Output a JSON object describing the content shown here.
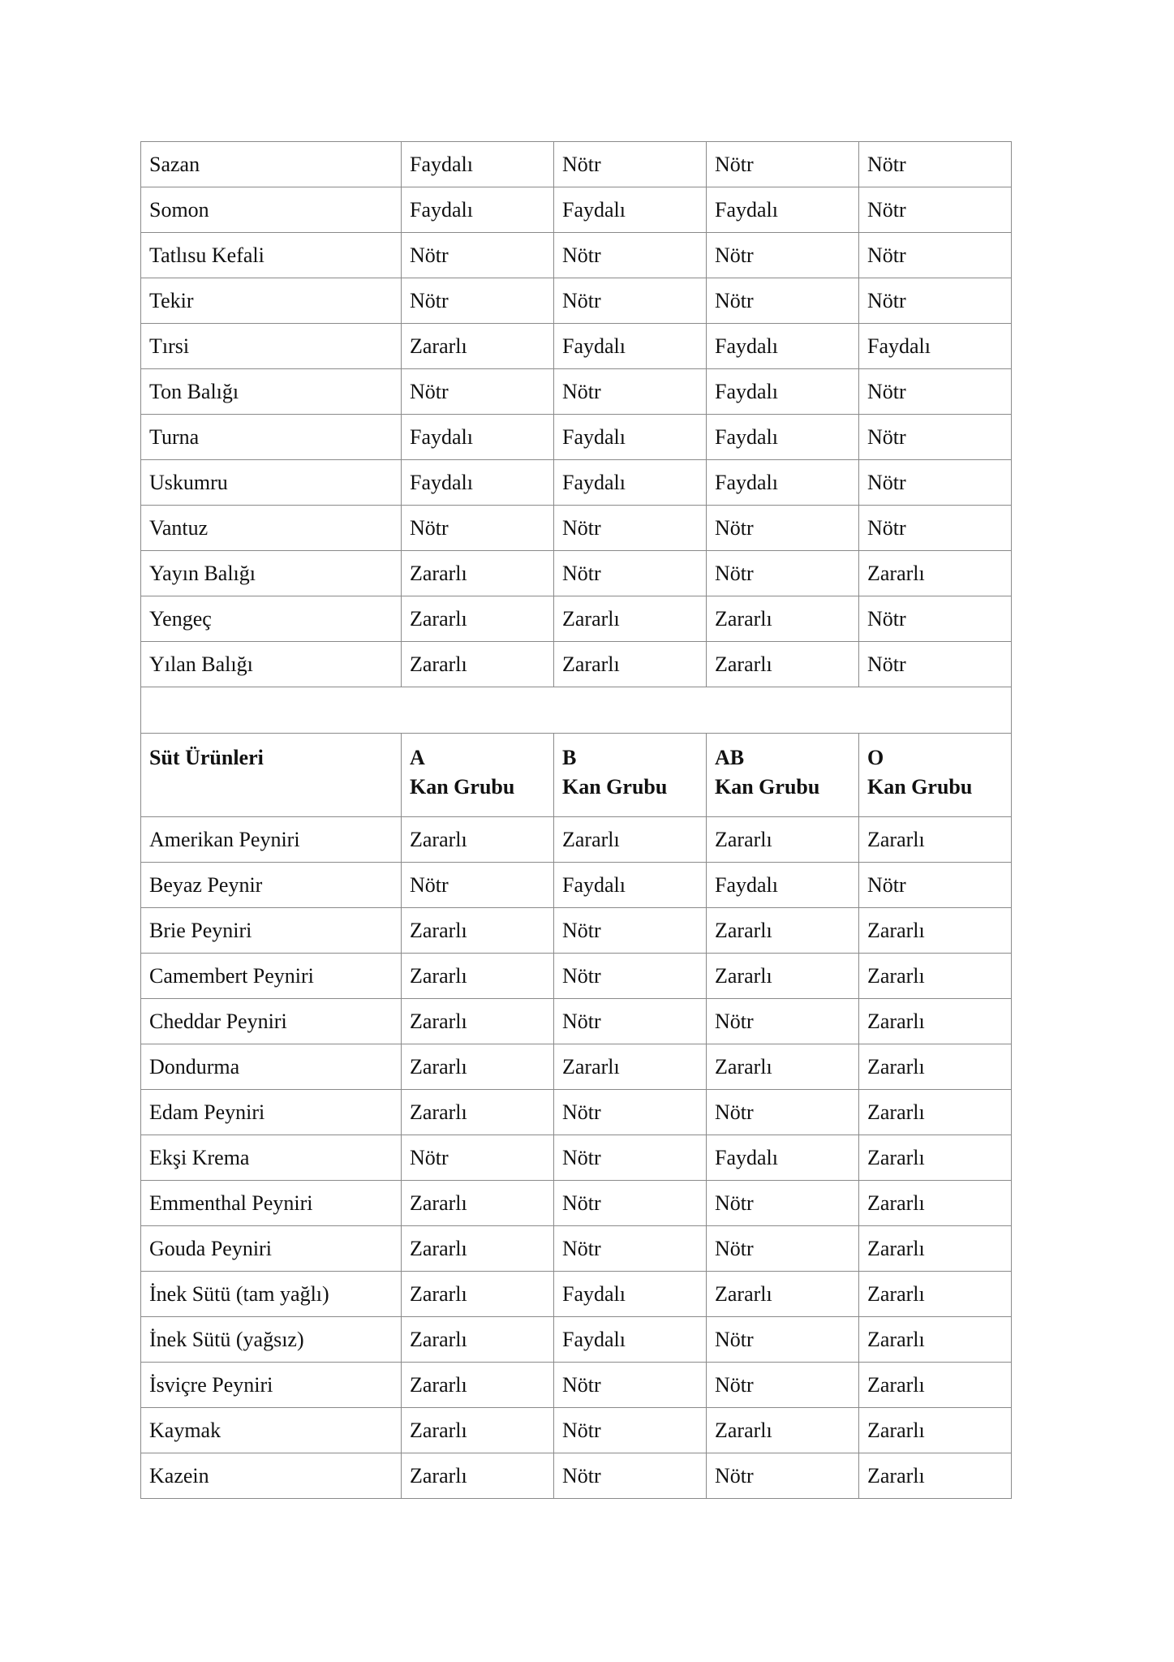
{
  "fish_rows": [
    [
      "Sazan",
      "Faydalı",
      "Nötr",
      "Nötr",
      "Nötr"
    ],
    [
      "Somon",
      "Faydalı",
      "Faydalı",
      "Faydalı",
      "Nötr"
    ],
    [
      "Tatlısu Kefali",
      "Nötr",
      "Nötr",
      "Nötr",
      "Nötr"
    ],
    [
      "Tekir",
      "Nötr",
      "Nötr",
      "Nötr",
      "Nötr"
    ],
    [
      "Tırsi",
      "Zararlı",
      "Faydalı",
      "Faydalı",
      "Faydalı"
    ],
    [
      "Ton Balığı",
      "Nötr",
      "Nötr",
      "Faydalı",
      "Nötr"
    ],
    [
      "Turna",
      "Faydalı",
      "Faydalı",
      "Faydalı",
      "Nötr"
    ],
    [
      "Uskumru",
      "Faydalı",
      "Faydalı",
      "Faydalı",
      "Nötr"
    ],
    [
      "Vantuz",
      "Nötr",
      "Nötr",
      "Nötr",
      "Nötr"
    ],
    [
      "Yayın Balığı",
      "Zararlı",
      "Nötr",
      "Nötr",
      "Zararlı"
    ],
    [
      "Yengeç",
      "Zararlı",
      "Zararlı",
      "Zararlı",
      "Nötr"
    ],
    [
      "Yılan Balığı",
      "Zararlı",
      "Zararlı",
      "Zararlı",
      "Nötr"
    ]
  ],
  "dairy_header": {
    "category": "Süt Ürünleri",
    "groups": [
      {
        "letter": "A",
        "label": "Kan Grubu"
      },
      {
        "letter": "B",
        "label": "Kan Grubu"
      },
      {
        "letter": "AB",
        "label": "Kan Grubu"
      },
      {
        "letter": "O",
        "label": "Kan Grubu"
      }
    ]
  },
  "dairy_rows": [
    [
      "Amerikan Peyniri",
      "Zararlı",
      "Zararlı",
      "Zararlı",
      "Zararlı"
    ],
    [
      "Beyaz Peynir",
      "Nötr",
      "Faydalı",
      "Faydalı",
      "Nötr"
    ],
    [
      "Brie Peyniri",
      "Zararlı",
      "Nötr",
      "Zararlı",
      "Zararlı"
    ],
    [
      "Camembert Peyniri",
      "Zararlı",
      "Nötr",
      "Zararlı",
      "Zararlı"
    ],
    [
      "Cheddar Peyniri",
      "Zararlı",
      "Nötr",
      "Nötr",
      "Zararlı"
    ],
    [
      "Dondurma",
      "Zararlı",
      "Zararlı",
      "Zararlı",
      "Zararlı"
    ],
    [
      "Edam Peyniri",
      "Zararlı",
      "Nötr",
      "Nötr",
      "Zararlı"
    ],
    [
      "Ekşi Krema",
      "Nötr",
      "Nötr",
      "Faydalı",
      "Zararlı"
    ],
    [
      "Emmenthal Peyniri",
      "Zararlı",
      "Nötr",
      "Nötr",
      "Zararlı"
    ],
    [
      "Gouda Peyniri",
      "Zararlı",
      "Nötr",
      "Nötr",
      "Zararlı"
    ],
    [
      "İnek Sütü (tam yağlı)",
      "Zararlı",
      "Faydalı",
      "Zararlı",
      "Zararlı"
    ],
    [
      "İnek Sütü (yağsız)",
      "Zararlı",
      "Faydalı",
      "Nötr",
      "Zararlı"
    ],
    [
      "İsviçre Peyniri",
      "Zararlı",
      "Nötr",
      "Nötr",
      "Zararlı"
    ],
    [
      "Kaymak",
      "Zararlı",
      "Nötr",
      "Zararlı",
      "Zararlı"
    ],
    [
      "Kazein",
      "Zararlı",
      "Nötr",
      "Nötr",
      "Zararlı"
    ]
  ]
}
